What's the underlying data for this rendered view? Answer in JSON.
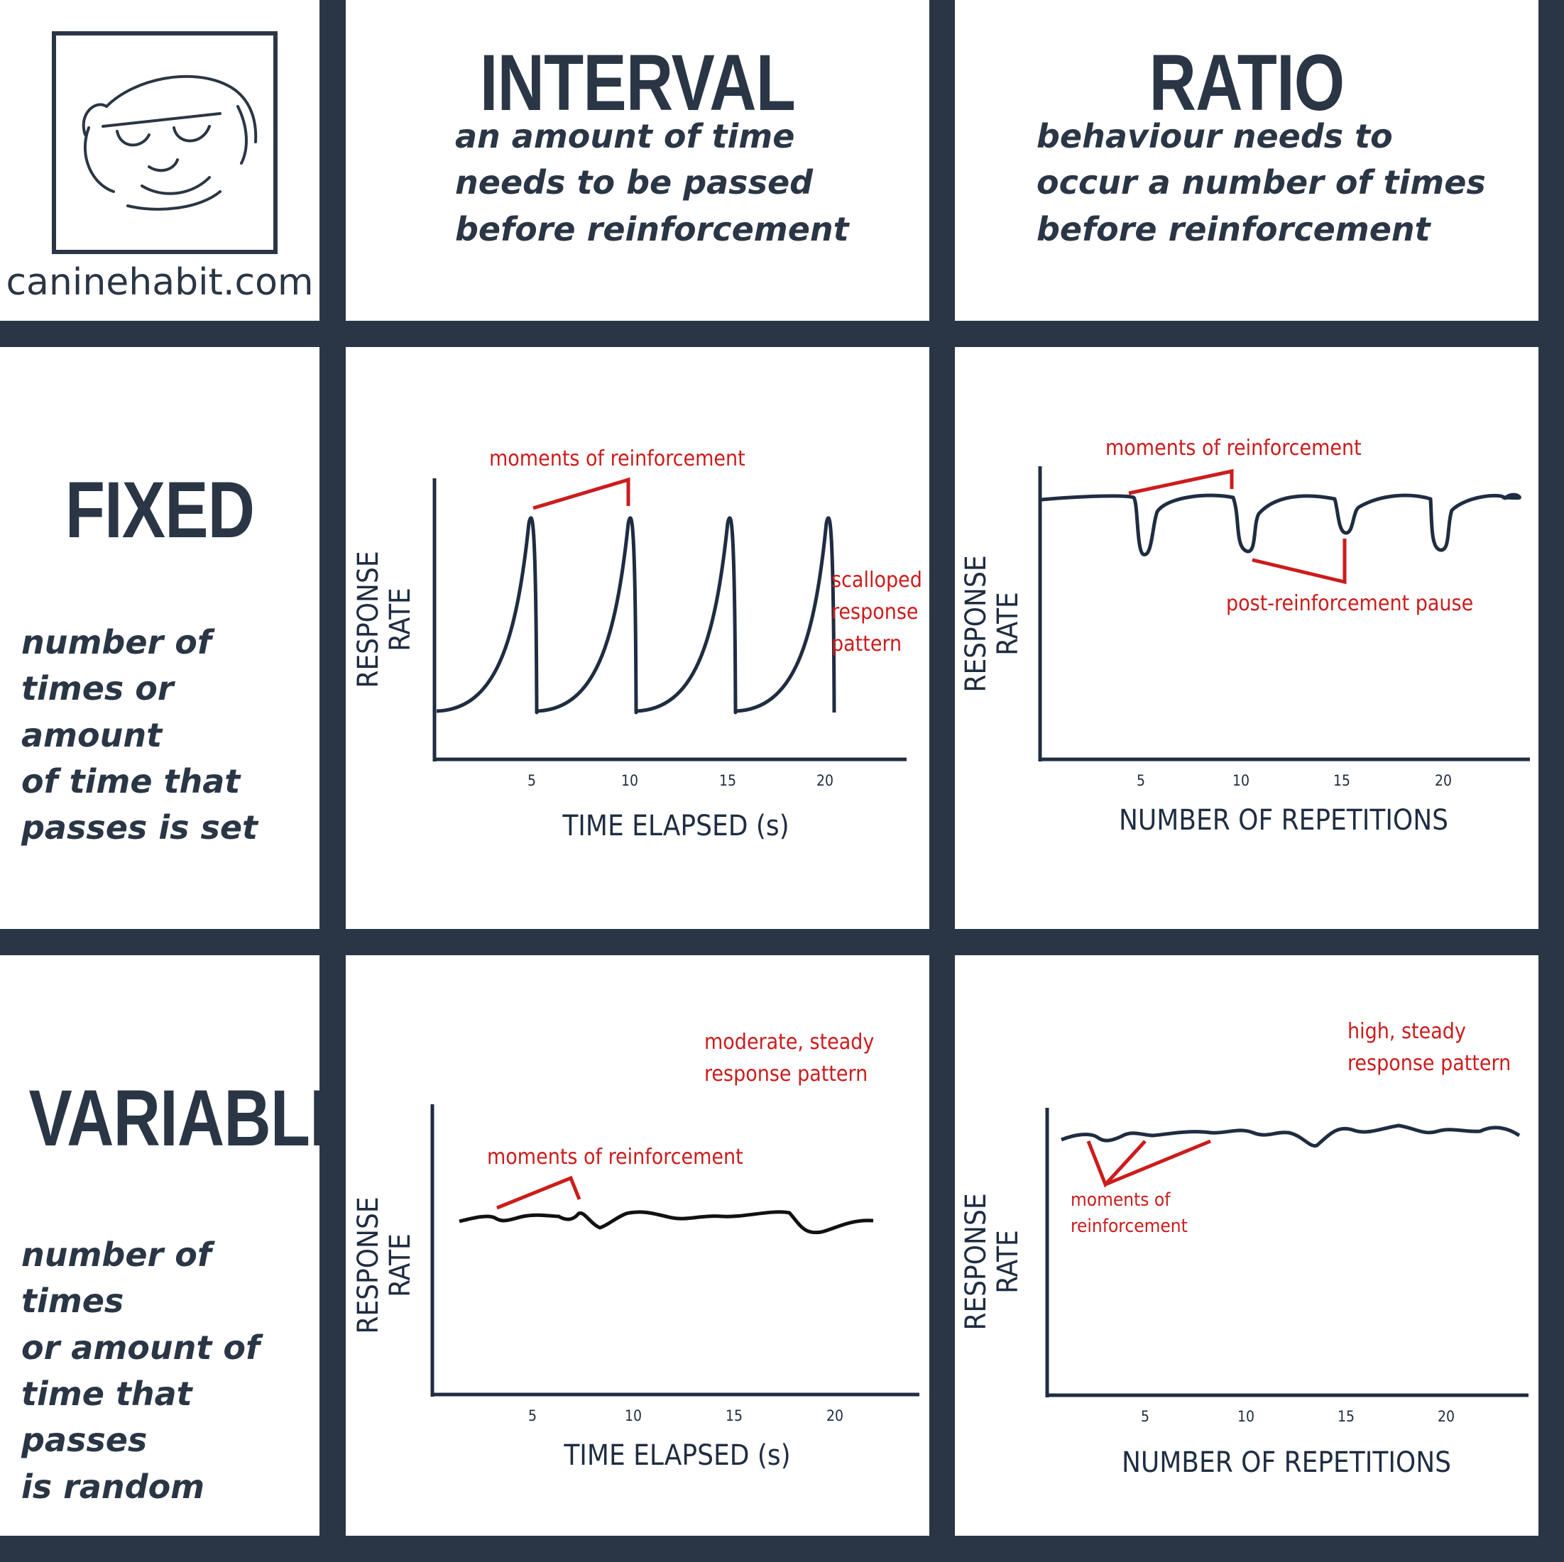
{
  "brand": {
    "site": "caninehabit.com"
  },
  "columns": {
    "interval": {
      "title": "INTERVAL",
      "description": "an amount of time\nneeds to be passed\nbefore reinforcement"
    },
    "ratio": {
      "title": "RATIO",
      "description": "behaviour needs to\noccur a number of times\nbefore reinforcement"
    }
  },
  "rows": {
    "fixed": {
      "title": "FIXED",
      "description": "number of\ntimes or amount\nof time that\npasses is set"
    },
    "variable": {
      "title": "VARIABLE",
      "description": "number of times\nor amount of\ntime that passes\nis random"
    }
  },
  "colors": {
    "dark": "#2a3645",
    "accent": "#cc1c1c",
    "curve": "#1f2d42",
    "black": "#111111"
  },
  "chart_data": [
    {
      "id": "fixed-interval",
      "type": "line",
      "xlabel": "TIME ELAPSED (s)",
      "ylabel_lines": [
        "RESPONSE",
        "RATE"
      ],
      "xticks": [
        5,
        10,
        15,
        20
      ],
      "xlim": [
        0,
        24
      ],
      "ylim": [
        0,
        10
      ],
      "pattern": "scalloped",
      "reinforcement_times": [
        5,
        10,
        15,
        20
      ],
      "annotations": [
        "moments of reinforcement",
        "scalloped\nresponse\npattern"
      ]
    },
    {
      "id": "fixed-ratio",
      "type": "line",
      "xlabel": "NUMBER OF REPETITIONS",
      "ylabel_lines": [
        "RESPONSE",
        "RATE"
      ],
      "xticks": [
        5,
        10,
        15,
        20
      ],
      "xlim": [
        0,
        24.5
      ],
      "ylim": [
        0,
        10
      ],
      "pattern": "high rate with post-reinforcement pauses",
      "pause_points": [
        5,
        10,
        15,
        20
      ],
      "annotations": [
        "moments of reinforcement",
        "post-reinforcement pause"
      ]
    },
    {
      "id": "variable-interval",
      "type": "line",
      "xlabel": "TIME ELAPSED (s)",
      "ylabel_lines": [
        "RESPONSE",
        "RATE"
      ],
      "xticks": [
        5,
        10,
        15,
        20
      ],
      "xlim": [
        0,
        24.5
      ],
      "ylim": [
        0,
        10
      ],
      "pattern": "moderate, steady",
      "annotations": [
        "moments of reinforcement",
        "moderate, steady\nresponse pattern"
      ]
    },
    {
      "id": "variable-ratio",
      "type": "line",
      "xlabel": "NUMBER OF REPETITIONS",
      "ylabel_lines": [
        "RESPONSE",
        "RATE"
      ],
      "xticks": [
        5,
        10,
        15,
        20
      ],
      "xlim": [
        0,
        24.5
      ],
      "ylim": [
        0,
        10
      ],
      "pattern": "high, steady",
      "annotations": [
        "high, steady\nresponse pattern",
        "moments of\nreinforcement"
      ]
    }
  ]
}
